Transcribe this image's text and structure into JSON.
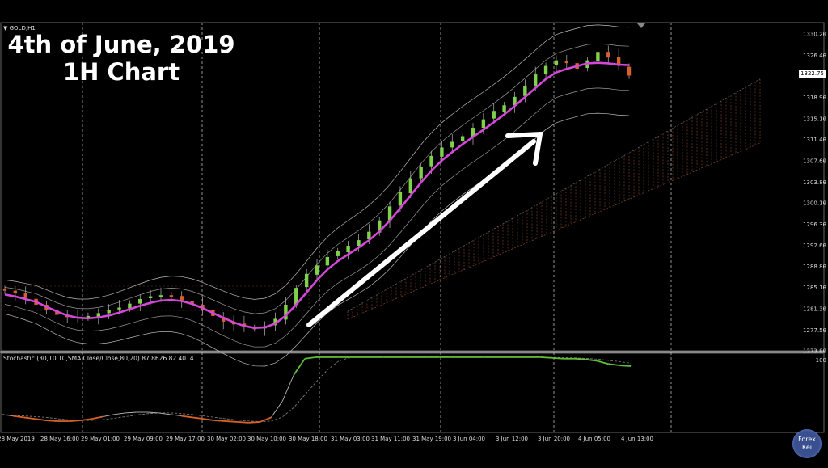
{
  "header": {
    "symbol": "GOLD,H1",
    "title_line1": "4th of June, 2019",
    "title_line2": "1H Chart",
    "current_price": "1322.75"
  },
  "stochastic": {
    "label": "Stochastic (30,10,10,SMA,Close/Close,80,20) 87.8626 82.4014",
    "level_label": "100"
  },
  "badge": {
    "line1": "Forex",
    "line2": "Kei"
  },
  "colors": {
    "background": "#000000",
    "bull": "#7fd14a",
    "bear": "#d8602a",
    "ma": "#d447d8",
    "arrow": "#ffffff",
    "stoch_main_high": "#5fbf3a",
    "stoch_main_low": "#d8602a"
  },
  "chart_data": {
    "type": "candlestick",
    "title": "",
    "y_axis_ticks": [
      "1330.20",
      "1326.40",
      "1322.75",
      "1318.90",
      "1315.10",
      "1311.40",
      "1307.60",
      "1303.80",
      "1300.10",
      "1296.30",
      "1292.60",
      "1288.80",
      "1285.10",
      "1281.30",
      "1277.50",
      "1273.80"
    ],
    "ylim": [
      1273.8,
      1330.2
    ],
    "x_axis_ticks": [
      "28 May 2019",
      "28 May 16:00",
      "29 May 01:00",
      "29 May 09:00",
      "29 May 17:00",
      "30 May 02:00",
      "30 May 10:00",
      "30 May 18:00",
      "31 May 03:00",
      "31 May 11:00",
      "31 May 19:00",
      "3 Jun 04:00",
      "3 Jun 12:00",
      "3 Jun 20:00",
      "4 Jun 05:00",
      "4 Jun 13:00"
    ],
    "close_path": [
      1284.5,
      1284.0,
      1283.2,
      1282.0,
      1281.0,
      1280.2,
      1279.8,
      1279.6,
      1280.0,
      1280.5,
      1281.0,
      1281.5,
      1282.2,
      1283.0,
      1283.5,
      1283.7,
      1283.4,
      1282.8,
      1282.0,
      1281.0,
      1280.0,
      1279.0,
      1278.5,
      1278.0,
      1277.8,
      1278.2,
      1279.5,
      1282.0,
      1285.0,
      1287.5,
      1289.0,
      1290.5,
      1291.5,
      1292.5,
      1293.5,
      1295.0,
      1297.0,
      1299.5,
      1302.0,
      1304.5,
      1306.5,
      1308.5,
      1310.0,
      1311.0,
      1312.0,
      1313.5,
      1315.0,
      1316.5,
      1317.5,
      1319.0,
      1321.0,
      1323.0,
      1324.5,
      1325.5,
      1325.0,
      1324.0,
      1325.5,
      1327.0,
      1326.0,
      1324.5,
      1322.8
    ],
    "stochastic_main": [
      22,
      20,
      18,
      16,
      14,
      13,
      13,
      14,
      16,
      19,
      22,
      24,
      25,
      25,
      24,
      22,
      20,
      18,
      16,
      14,
      13,
      12,
      11,
      12,
      18,
      40,
      75,
      97,
      99,
      99,
      99,
      99,
      99,
      99,
      99,
      99,
      99,
      99,
      99,
      99,
      99,
      99,
      99,
      99,
      99,
      99,
      99,
      99,
      99,
      98,
      97,
      97,
      96,
      94,
      90,
      88,
      87
    ],
    "stochastic_levels": [
      80,
      20,
      100
    ]
  }
}
